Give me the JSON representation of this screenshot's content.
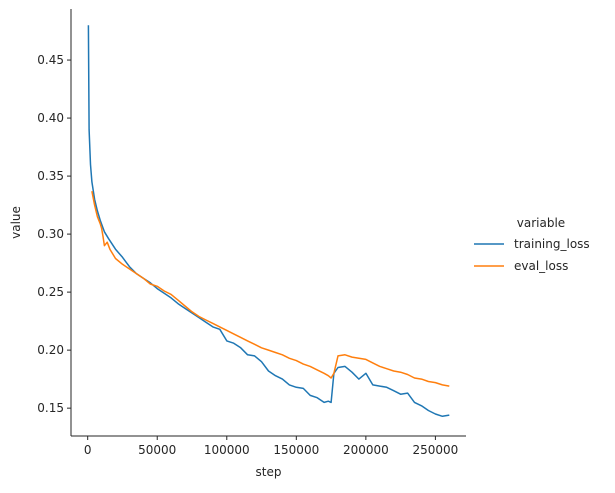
{
  "chart_data": {
    "type": "line",
    "title": "",
    "xlabel": "step",
    "ylabel": "value",
    "xlim": [
      -12000,
      272000
    ],
    "ylim": [
      0.126,
      0.494
    ],
    "xticks": [
      0,
      50000,
      100000,
      150000,
      200000,
      250000
    ],
    "xtick_labels": [
      "0",
      "50000",
      "100000",
      "150000",
      "200000",
      "250000"
    ],
    "yticks": [
      0.15,
      0.2,
      0.25,
      0.3,
      0.35,
      0.4,
      0.45
    ],
    "ytick_labels": [
      "0.15",
      "0.20",
      "0.25",
      "0.30",
      "0.35",
      "0.40",
      "0.45"
    ],
    "grid": false,
    "legend": {
      "title": "variable",
      "placement": "right"
    },
    "series": [
      {
        "name": "training_loss",
        "color": "#1f77b4",
        "x": [
          500,
          1000,
          2000,
          3000,
          5000,
          7000,
          9000,
          12000,
          15000,
          20000,
          25000,
          30000,
          35000,
          40000,
          45000,
          50000,
          55000,
          60000,
          65000,
          70000,
          75000,
          80000,
          85000,
          90000,
          95000,
          100000,
          105000,
          110000,
          115000,
          120000,
          125000,
          130000,
          135000,
          140000,
          145000,
          150000,
          155000,
          160000,
          165000,
          170000,
          173000,
          175000,
          177000,
          180000,
          185000,
          190000,
          195000,
          200000,
          205000,
          210000,
          215000,
          220000,
          225000,
          230000,
          235000,
          240000,
          245000,
          250000,
          255000,
          260000
        ],
        "y": [
          0.48,
          0.39,
          0.36,
          0.345,
          0.33,
          0.32,
          0.312,
          0.302,
          0.296,
          0.287,
          0.28,
          0.272,
          0.266,
          0.262,
          0.258,
          0.253,
          0.249,
          0.245,
          0.24,
          0.236,
          0.232,
          0.228,
          0.224,
          0.22,
          0.218,
          0.208,
          0.206,
          0.202,
          0.196,
          0.195,
          0.19,
          0.182,
          0.178,
          0.175,
          0.17,
          0.168,
          0.167,
          0.161,
          0.159,
          0.155,
          0.156,
          0.155,
          0.18,
          0.185,
          0.186,
          0.181,
          0.175,
          0.18,
          0.17,
          0.169,
          0.168,
          0.165,
          0.162,
          0.163,
          0.155,
          0.152,
          0.148,
          0.145,
          0.143,
          0.144
        ]
      },
      {
        "name": "eval_loss",
        "color": "#ff7f0e",
        "x": [
          3000,
          5000,
          7000,
          9000,
          10000,
          11000,
          12000,
          14000,
          16000,
          20000,
          25000,
          30000,
          35000,
          40000,
          45000,
          50000,
          55000,
          60000,
          65000,
          70000,
          75000,
          80000,
          85000,
          90000,
          95000,
          100000,
          105000,
          110000,
          115000,
          120000,
          125000,
          130000,
          135000,
          140000,
          145000,
          150000,
          155000,
          160000,
          165000,
          170000,
          173000,
          175000,
          177000,
          180000,
          185000,
          190000,
          195000,
          200000,
          205000,
          210000,
          215000,
          220000,
          225000,
          230000,
          235000,
          240000,
          245000,
          250000,
          255000,
          260000
        ],
        "y": [
          0.337,
          0.325,
          0.315,
          0.309,
          0.305,
          0.298,
          0.29,
          0.293,
          0.287,
          0.279,
          0.274,
          0.27,
          0.266,
          0.262,
          0.257,
          0.255,
          0.251,
          0.248,
          0.243,
          0.238,
          0.233,
          0.229,
          0.226,
          0.223,
          0.22,
          0.217,
          0.214,
          0.211,
          0.208,
          0.205,
          0.202,
          0.2,
          0.198,
          0.196,
          0.193,
          0.191,
          0.188,
          0.186,
          0.183,
          0.18,
          0.178,
          0.176,
          0.18,
          0.195,
          0.196,
          0.194,
          0.193,
          0.192,
          0.189,
          0.186,
          0.184,
          0.182,
          0.181,
          0.179,
          0.176,
          0.175,
          0.173,
          0.172,
          0.17,
          0.169
        ]
      }
    ]
  }
}
